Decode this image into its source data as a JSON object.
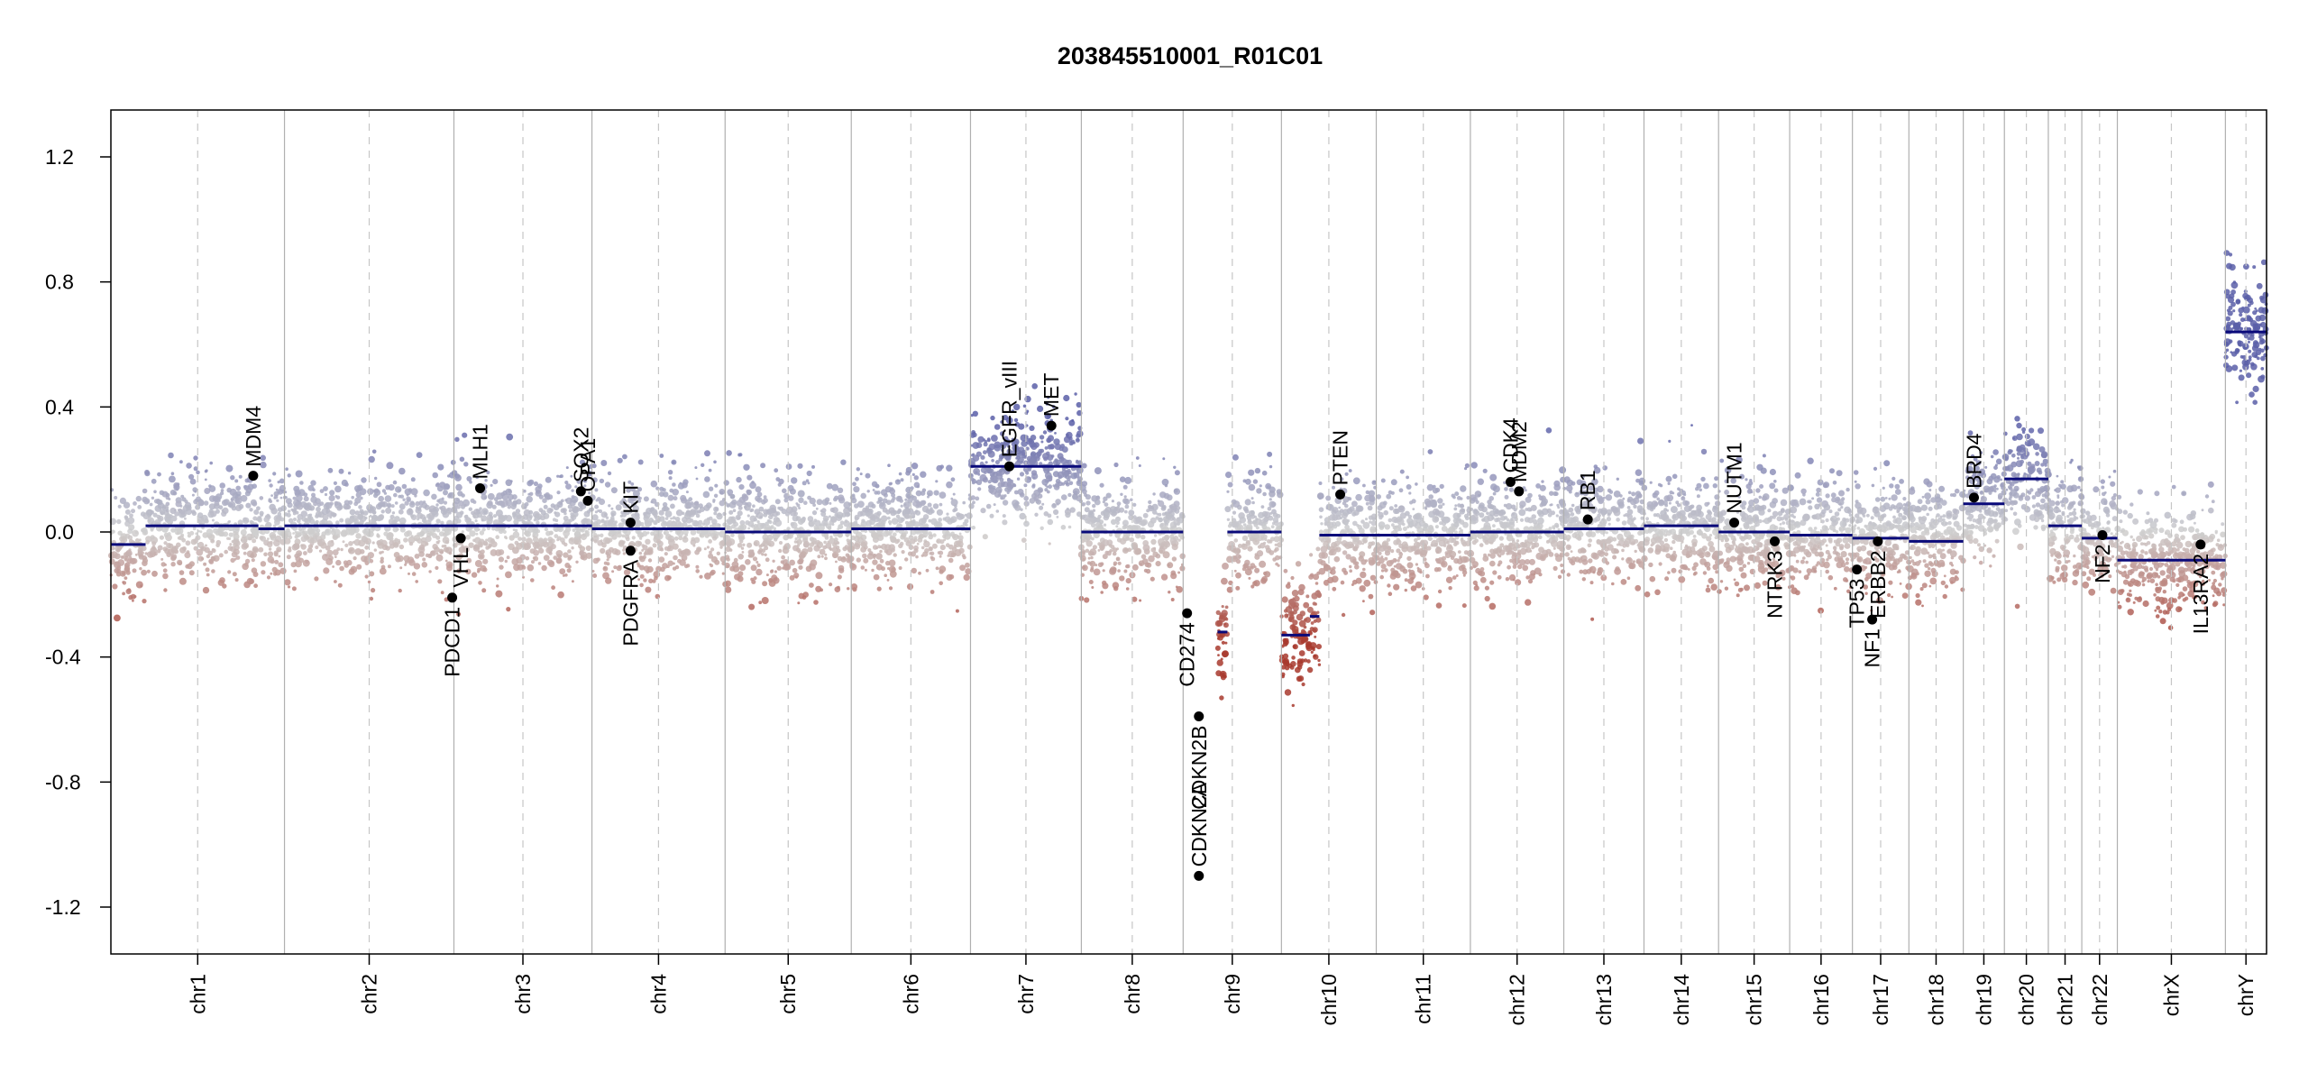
{
  "chart_data": {
    "type": "scatter",
    "title": "203845510001_R01C01",
    "xlabel": "",
    "ylabel": "",
    "ylim": [
      -1.35,
      1.35
    ],
    "y_ticks": [
      1.2,
      0.8,
      0.4,
      0.0,
      -0.4,
      -0.8,
      -1.2
    ],
    "y_tick_labels": [
      "1.2",
      "0.8",
      "0.4",
      "0.0",
      "-0.4",
      "-0.8",
      "-1.2"
    ],
    "grid": false,
    "colors": {
      "gain": "#5b5fa8",
      "loss": "#a83a2e",
      "neutral": "#cfcfcf",
      "segment": "#0a0a7a",
      "gene_marker": "#000000",
      "separator": "#b0b0b0",
      "centromere": "#c6c6c6"
    },
    "chromosomes": [
      {
        "name": "chr1",
        "size": 249
      },
      {
        "name": "chr2",
        "size": 243
      },
      {
        "name": "chr3",
        "size": 198
      },
      {
        "name": "chr4",
        "size": 191
      },
      {
        "name": "chr5",
        "size": 181
      },
      {
        "name": "chr6",
        "size": 171
      },
      {
        "name": "chr7",
        "size": 159
      },
      {
        "name": "chr8",
        "size": 146
      },
      {
        "name": "chr9",
        "size": 141
      },
      {
        "name": "chr10",
        "size": 136
      },
      {
        "name": "chr11",
        "size": 135
      },
      {
        "name": "chr12",
        "size": 134
      },
      {
        "name": "chr13",
        "size": 115
      },
      {
        "name": "chr14",
        "size": 107
      },
      {
        "name": "chr15",
        "size": 102
      },
      {
        "name": "chr16",
        "size": 90
      },
      {
        "name": "chr17",
        "size": 81
      },
      {
        "name": "chr18",
        "size": 78
      },
      {
        "name": "chr19",
        "size": 59
      },
      {
        "name": "chr20",
        "size": 63
      },
      {
        "name": "chr21",
        "size": 48
      },
      {
        "name": "chr22",
        "size": 51
      },
      {
        "name": "chrX",
        "size": 155
      },
      {
        "name": "chrY",
        "size": 59
      }
    ],
    "segments": [
      {
        "chr": "chr1",
        "start": 0.0,
        "end": 0.2,
        "value": -0.04
      },
      {
        "chr": "chr1",
        "start": 0.2,
        "end": 0.85,
        "value": 0.02
      },
      {
        "chr": "chr1",
        "start": 0.85,
        "end": 1.0,
        "value": 0.01
      },
      {
        "chr": "chr2",
        "start": 0.0,
        "end": 1.0,
        "value": 0.02
      },
      {
        "chr": "chr3",
        "start": 0.0,
        "end": 1.0,
        "value": 0.02
      },
      {
        "chr": "chr4",
        "start": 0.0,
        "end": 1.0,
        "value": 0.01
      },
      {
        "chr": "chr5",
        "start": 0.0,
        "end": 1.0,
        "value": 0.0
      },
      {
        "chr": "chr6",
        "start": 0.0,
        "end": 1.0,
        "value": 0.01
      },
      {
        "chr": "chr7",
        "start": 0.0,
        "end": 1.0,
        "value": 0.21
      },
      {
        "chr": "chr8",
        "start": 0.0,
        "end": 1.0,
        "value": 0.0
      },
      {
        "chr": "chr9",
        "start": 0.35,
        "end": 0.45,
        "value": -0.32
      },
      {
        "chr": "chr9",
        "start": 0.45,
        "end": 1.0,
        "value": 0.0
      },
      {
        "chr": "chr10",
        "start": 0.0,
        "end": 0.3,
        "value": -0.33
      },
      {
        "chr": "chr10",
        "start": 0.3,
        "end": 0.4,
        "value": -0.27
      },
      {
        "chr": "chr10",
        "start": 0.4,
        "end": 1.0,
        "value": -0.01
      },
      {
        "chr": "chr11",
        "start": 0.0,
        "end": 1.0,
        "value": -0.01
      },
      {
        "chr": "chr12",
        "start": 0.0,
        "end": 1.0,
        "value": 0.0
      },
      {
        "chr": "chr13",
        "start": 0.0,
        "end": 1.0,
        "value": 0.01
      },
      {
        "chr": "chr14",
        "start": 0.0,
        "end": 1.0,
        "value": 0.02
      },
      {
        "chr": "chr15",
        "start": 0.0,
        "end": 1.0,
        "value": 0.0
      },
      {
        "chr": "chr16",
        "start": 0.0,
        "end": 1.0,
        "value": -0.01
      },
      {
        "chr": "chr17",
        "start": 0.0,
        "end": 1.0,
        "value": -0.02
      },
      {
        "chr": "chr18",
        "start": 0.0,
        "end": 1.0,
        "value": -0.03
      },
      {
        "chr": "chr19",
        "start": 0.0,
        "end": 1.0,
        "value": 0.09
      },
      {
        "chr": "chr20",
        "start": 0.0,
        "end": 1.0,
        "value": 0.17
      },
      {
        "chr": "chr21",
        "start": 0.0,
        "end": 1.0,
        "value": 0.02
      },
      {
        "chr": "chr22",
        "start": 0.0,
        "end": 1.0,
        "value": -0.02
      },
      {
        "chr": "chrX",
        "start": 0.0,
        "end": 1.0,
        "value": -0.09
      },
      {
        "chr": "chrY",
        "start": 0.0,
        "end": 1.0,
        "value": 0.64
      }
    ],
    "genes": [
      {
        "name": "MDM4",
        "chr": "chr1",
        "pos": 0.82,
        "value": 0.18,
        "label_side": "above"
      },
      {
        "name": "PDCD1",
        "chr": "chr2",
        "pos": 0.99,
        "value": -0.21,
        "label_side": "below"
      },
      {
        "name": "VHL",
        "chr": "chr3",
        "pos": 0.05,
        "value": -0.02,
        "label_side": "below"
      },
      {
        "name": "MLH1",
        "chr": "chr3",
        "pos": 0.19,
        "value": 0.14,
        "label_side": "above"
      },
      {
        "name": "SOX2",
        "chr": "chr3",
        "pos": 0.92,
        "value": 0.13,
        "label_side": "above"
      },
      {
        "name": "OPA1",
        "chr": "chr3",
        "pos": 0.97,
        "value": 0.1,
        "label_side": "above"
      },
      {
        "name": "KIT",
        "chr": "chr4",
        "pos": 0.29,
        "value": 0.03,
        "label_side": "above"
      },
      {
        "name": "PDGFRA",
        "chr": "chr4",
        "pos": 0.29,
        "value": -0.06,
        "label_side": "below"
      },
      {
        "name": "EGFR_vIII",
        "chr": "chr7",
        "pos": 0.35,
        "value": 0.21,
        "label_side": "above"
      },
      {
        "name": "MET",
        "chr": "chr7",
        "pos": 0.73,
        "value": 0.34,
        "label_side": "above"
      },
      {
        "name": "CD274",
        "chr": "chr9",
        "pos": 0.04,
        "value": -0.26,
        "label_side": "below"
      },
      {
        "name": "CDKN2A",
        "chr": "chr9",
        "pos": 0.16,
        "value": -1.1,
        "label_side": "above"
      },
      {
        "name": "CDKN2B",
        "chr": "chr9",
        "pos": 0.16,
        "value": -0.59,
        "label_side": "below"
      },
      {
        "name": "PTEN",
        "chr": "chr10",
        "pos": 0.62,
        "value": 0.12,
        "label_side": "above"
      },
      {
        "name": "CDK4",
        "chr": "chr12",
        "pos": 0.43,
        "value": 0.16,
        "label_side": "above"
      },
      {
        "name": "MDM2",
        "chr": "chr12",
        "pos": 0.52,
        "value": 0.13,
        "label_side": "above"
      },
      {
        "name": "RB1",
        "chr": "chr13",
        "pos": 0.3,
        "value": 0.04,
        "label_side": "above"
      },
      {
        "name": "NUTM1",
        "chr": "chr15",
        "pos": 0.22,
        "value": 0.03,
        "label_side": "above"
      },
      {
        "name": "NTRK3",
        "chr": "chr15",
        "pos": 0.79,
        "value": -0.03,
        "label_side": "below"
      },
      {
        "name": "TP53",
        "chr": "chr17",
        "pos": 0.08,
        "value": -0.12,
        "label_side": "below"
      },
      {
        "name": "NF1",
        "chr": "chr17",
        "pos": 0.35,
        "value": -0.28,
        "label_side": "below"
      },
      {
        "name": "ERBB2",
        "chr": "chr17",
        "pos": 0.45,
        "value": -0.03,
        "label_side": "below"
      },
      {
        "name": "BRD4",
        "chr": "chr19",
        "pos": 0.26,
        "value": 0.11,
        "label_side": "above"
      },
      {
        "name": "NF2",
        "chr": "chr22",
        "pos": 0.58,
        "value": -0.01,
        "label_side": "below"
      },
      {
        "name": "IL13RA2",
        "chr": "chrX",
        "pos": 0.77,
        "value": -0.04,
        "label_side": "below"
      }
    ]
  }
}
